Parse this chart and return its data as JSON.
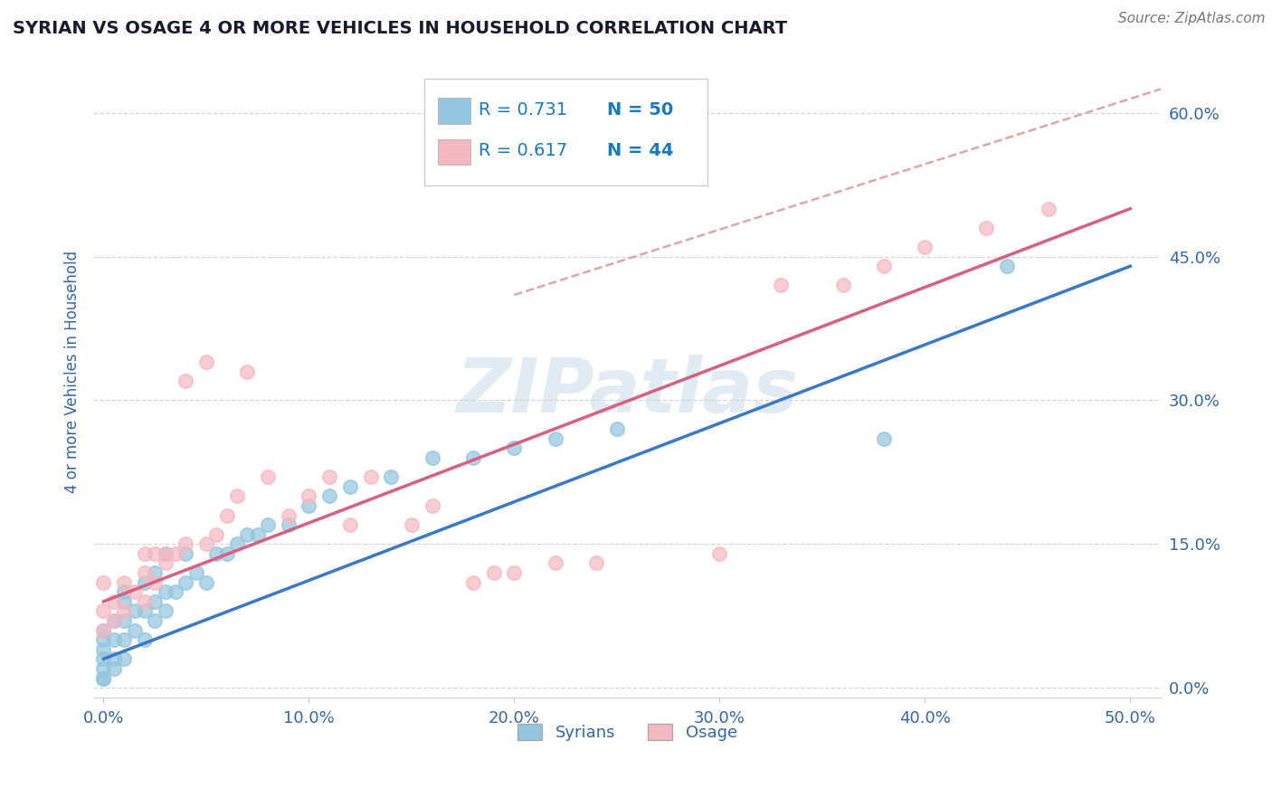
{
  "title": "SYRIAN VS OSAGE 4 OR MORE VEHICLES IN HOUSEHOLD CORRELATION CHART",
  "source": "Source: ZipAtlas.com",
  "ylabel": "4 or more Vehicles in Household",
  "xlim": [
    -0.005,
    0.515
  ],
  "ylim": [
    -0.01,
    0.67
  ],
  "xtick_labels": [
    "0.0%",
    "10.0%",
    "20.0%",
    "30.0%",
    "40.0%",
    "50.0%"
  ],
  "ytick_labels": [
    "0.0%",
    "15.0%",
    "30.0%",
    "45.0%",
    "60.0%"
  ],
  "ytick_positions": [
    0.0,
    0.15,
    0.3,
    0.45,
    0.6
  ],
  "xtick_positions": [
    0.0,
    0.1,
    0.2,
    0.3,
    0.4,
    0.5
  ],
  "legend_r1": "R = 0.731",
  "legend_n1": "N = 50",
  "legend_r2": "R = 0.617",
  "legend_n2": "N = 44",
  "legend_label1": "Syrians",
  "legend_label2": "Osage",
  "color_syrian": "#92c5de",
  "color_osage": "#f4b8c1",
  "color_syrian_line": "#3a78c9",
  "color_osage_line": "#d95f7f",
  "color_dashed": "#d48080",
  "watermark_color": "#c5d8ea",
  "watermark": "ZIPatlas",
  "syrian_scatter_x": [
    0.0,
    0.0,
    0.0,
    0.0,
    0.0,
    0.0,
    0.0,
    0.005,
    0.005,
    0.005,
    0.005,
    0.01,
    0.01,
    0.01,
    0.01,
    0.01,
    0.015,
    0.015,
    0.02,
    0.02,
    0.02,
    0.025,
    0.025,
    0.025,
    0.03,
    0.03,
    0.03,
    0.035,
    0.04,
    0.04,
    0.045,
    0.05,
    0.055,
    0.06,
    0.065,
    0.07,
    0.075,
    0.08,
    0.09,
    0.1,
    0.11,
    0.12,
    0.14,
    0.16,
    0.18,
    0.2,
    0.22,
    0.25,
    0.38,
    0.44
  ],
  "syrian_scatter_y": [
    0.01,
    0.01,
    0.02,
    0.03,
    0.04,
    0.05,
    0.06,
    0.02,
    0.03,
    0.05,
    0.07,
    0.03,
    0.05,
    0.07,
    0.09,
    0.1,
    0.06,
    0.08,
    0.05,
    0.08,
    0.11,
    0.07,
    0.09,
    0.12,
    0.08,
    0.1,
    0.14,
    0.1,
    0.11,
    0.14,
    0.12,
    0.11,
    0.14,
    0.14,
    0.15,
    0.16,
    0.16,
    0.17,
    0.17,
    0.19,
    0.2,
    0.21,
    0.22,
    0.24,
    0.24,
    0.25,
    0.26,
    0.27,
    0.26,
    0.44
  ],
  "osage_scatter_x": [
    0.0,
    0.0,
    0.0,
    0.005,
    0.005,
    0.01,
    0.01,
    0.015,
    0.02,
    0.02,
    0.02,
    0.025,
    0.025,
    0.03,
    0.03,
    0.035,
    0.04,
    0.04,
    0.05,
    0.05,
    0.055,
    0.06,
    0.065,
    0.07,
    0.08,
    0.09,
    0.1,
    0.11,
    0.12,
    0.13,
    0.15,
    0.16,
    0.18,
    0.19,
    0.2,
    0.22,
    0.24,
    0.3,
    0.33,
    0.36,
    0.38,
    0.4,
    0.43,
    0.46
  ],
  "osage_scatter_y": [
    0.06,
    0.08,
    0.11,
    0.07,
    0.09,
    0.08,
    0.11,
    0.1,
    0.09,
    0.12,
    0.14,
    0.11,
    0.14,
    0.13,
    0.14,
    0.14,
    0.15,
    0.32,
    0.15,
    0.34,
    0.16,
    0.18,
    0.2,
    0.33,
    0.22,
    0.18,
    0.2,
    0.22,
    0.17,
    0.22,
    0.17,
    0.19,
    0.11,
    0.12,
    0.12,
    0.13,
    0.13,
    0.14,
    0.42,
    0.42,
    0.44,
    0.46,
    0.48,
    0.5
  ],
  "syrian_line_x": [
    0.0,
    0.5
  ],
  "syrian_line_y": [
    0.03,
    0.44
  ],
  "osage_line_x": [
    0.0,
    0.5
  ],
  "osage_line_y": [
    0.09,
    0.5
  ],
  "dashed_line_x": [
    0.2,
    0.515
  ],
  "dashed_line_y": [
    0.41,
    0.625
  ],
  "background_color": "#ffffff",
  "grid_color": "#cccccc",
  "title_color": "#1a1a2e",
  "axis_color": "#3366aa",
  "tick_color": "#3366aa",
  "legend_color": "#1a7abf",
  "fig_width": 14.06,
  "fig_height": 8.92,
  "dpi": 100
}
